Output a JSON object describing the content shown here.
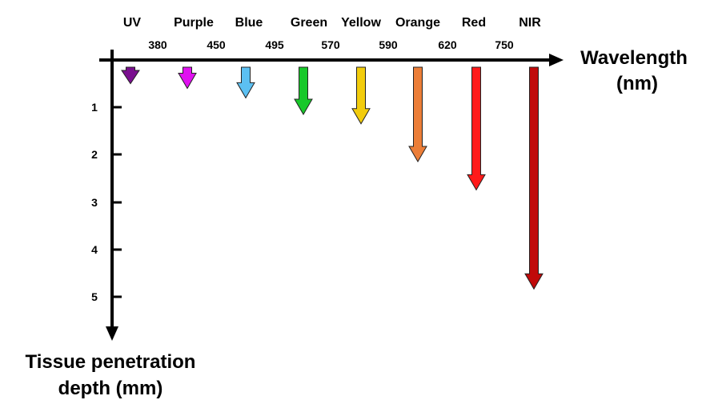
{
  "bands": [
    {
      "name": "UV",
      "color": "#7a0f8f",
      "depth_mm": 0.35
    },
    {
      "name": "Purple",
      "color": "#e010f0",
      "depth_mm": 0.45
    },
    {
      "name": "Blue",
      "color": "#5cc0f2",
      "depth_mm": 0.65
    },
    {
      "name": "Green",
      "color": "#18c82a",
      "depth_mm": 1.0
    },
    {
      "name": "Yellow",
      "color": "#f2cc0c",
      "depth_mm": 1.2
    },
    {
      "name": "Orange",
      "color": "#ec7e38",
      "depth_mm": 2.0
    },
    {
      "name": "Red",
      "color": "#ff1a1a",
      "depth_mm": 2.6
    },
    {
      "name": "NIR",
      "color": "#c00a0a",
      "depth_mm": 4.7
    }
  ],
  "wavelength_ticks": [
    "380",
    "450",
    "495",
    "570",
    "590",
    "620",
    "750"
  ],
  "depth_ticks": [
    "1",
    "2",
    "3",
    "4",
    "5"
  ],
  "x_axis_label": [
    "Wavelength",
    "(nm)"
  ],
  "y_axis_label": [
    "Tissue penetration",
    "depth (mm)"
  ]
}
